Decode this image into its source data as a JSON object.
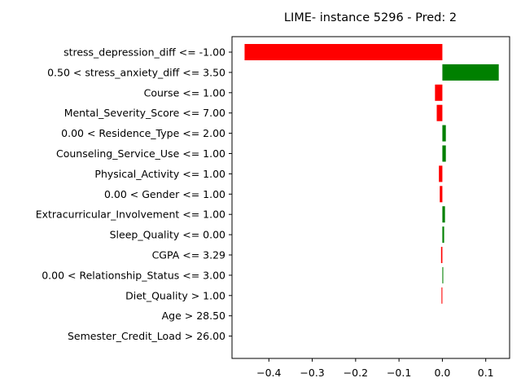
{
  "chart_data": {
    "type": "bar",
    "orientation": "horizontal",
    "title": "LIME- instance 5296 - Pred: 2",
    "xlabel": "",
    "ylabel": "",
    "xlim": [
      -0.485,
      0.155
    ],
    "x_ticks": [
      -0.4,
      -0.3,
      -0.2,
      -0.1,
      0.0,
      0.1
    ],
    "x_tick_labels": [
      "−0.4",
      "−0.3",
      "−0.2",
      "−0.1",
      "0.0",
      "0.1"
    ],
    "grid": false,
    "legend": "none",
    "colors": {
      "positive": "#008000",
      "negative": "#ff0000"
    },
    "categories": [
      "stress_depression_diff <= -1.00",
      "0.50 < stress_anxiety_diff <= 3.50",
      "Course <= 1.00",
      "Mental_Severity_Score <= 7.00",
      "0.00 < Residence_Type <= 2.00",
      "Counseling_Service_Use <= 1.00",
      "Physical_Activity <= 1.00",
      "0.00 < Gender <= 1.00",
      "Extracurricular_Involvement <= 1.00",
      "Sleep_Quality <= 0.00",
      "CGPA <= 3.29",
      "0.00 < Relationship_Status <= 3.00",
      "Diet_Quality > 1.00",
      "Age > 28.50",
      "Semester_Credit_Load > 26.00"
    ],
    "values": [
      -0.456,
      0.13,
      -0.017,
      -0.013,
      0.008,
      0.008,
      -0.008,
      -0.006,
      0.006,
      0.004,
      -0.003,
      0.002,
      -0.002,
      0.0,
      0.0
    ]
  }
}
